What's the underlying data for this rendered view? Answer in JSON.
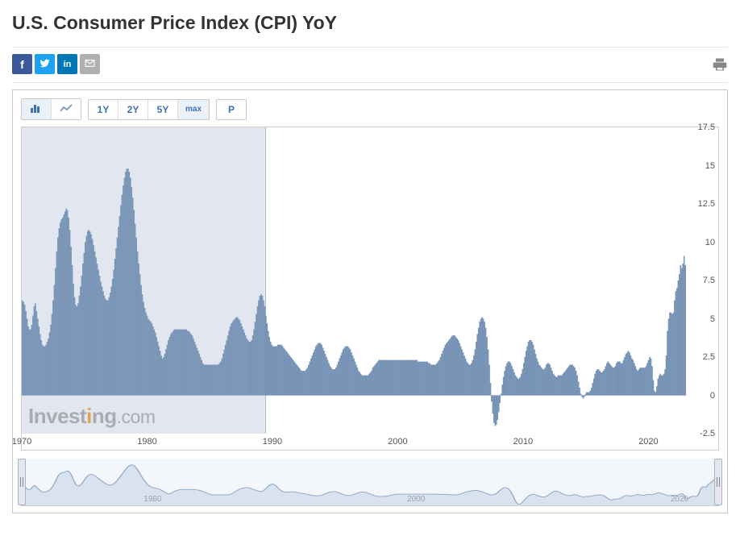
{
  "title": "U.S. Consumer Price Index (CPI) YoY",
  "share": {
    "facebook": "f",
    "twitter": "t",
    "linkedin": "in",
    "email": "✉"
  },
  "toolbar": {
    "chartTypes": {
      "bar": "bar-chart",
      "line": "line-chart",
      "selected": "bar"
    },
    "ranges": [
      "1Y",
      "2Y",
      "5Y",
      "max"
    ],
    "selectedRange": "max",
    "priceBtn": "P"
  },
  "chart": {
    "type": "bar",
    "bar_color": "#7a96b8",
    "bar_border": "#5f7fa6",
    "background": "#ffffff",
    "selection_overlay_fraction_start": 0.0,
    "selection_overlay_fraction_end": 0.35,
    "watermark": {
      "text_a": "Invest",
      "text_b": "i",
      "text_c": "ng",
      "text_d": ".com"
    },
    "y": {
      "min": -2.5,
      "max": 17.5,
      "ticks": [
        -2.5,
        0,
        2.5,
        5,
        7.5,
        10,
        12.5,
        15,
        17.5
      ]
    },
    "x": {
      "start": 1970,
      "end": 2023,
      "tick_step": 10,
      "ticks": [
        1970,
        1980,
        1990,
        2000,
        2010,
        2020
      ]
    },
    "data": [
      6.2,
      6.1,
      5.9,
      5.5,
      5.0,
      4.5,
      4.3,
      4.3,
      4.6,
      5.2,
      5.8,
      6.0,
      5.5,
      5.0,
      4.5,
      4.0,
      3.6,
      3.3,
      3.2,
      3.2,
      3.3,
      3.5,
      3.7,
      4.1,
      4.6,
      5.3,
      6.2,
      7.2,
      8.3,
      9.4,
      10.3,
      10.9,
      11.3,
      11.5,
      11.6,
      11.8,
      12.0,
      12.2,
      12.1,
      11.6,
      10.8,
      9.7,
      8.5,
      7.3,
      6.4,
      5.9,
      5.8,
      6.0,
      6.5,
      7.1,
      7.8,
      8.6,
      9.3,
      10.0,
      10.4,
      10.7,
      10.8,
      10.7,
      10.5,
      10.2,
      9.8,
      9.4,
      9.0,
      8.6,
      8.2,
      7.8,
      7.4,
      7.1,
      6.8,
      6.5,
      6.3,
      6.2,
      6.2,
      6.4,
      6.7,
      7.1,
      7.6,
      8.2,
      8.9,
      9.6,
      10.3,
      11.0,
      11.7,
      12.4,
      13.1,
      13.7,
      14.2,
      14.6,
      14.8,
      14.8,
      14.6,
      14.2,
      13.6,
      12.9,
      12.1,
      11.2,
      10.3,
      9.4,
      8.6,
      7.9,
      7.2,
      6.6,
      6.1,
      5.7,
      5.4,
      5.2,
      5.0,
      4.9,
      4.8,
      4.7,
      4.5,
      4.3,
      4.1,
      3.8,
      3.5,
      3.2,
      2.9,
      2.6,
      2.4,
      2.5,
      2.7,
      3.0,
      3.3,
      3.6,
      3.8,
      4.0,
      4.1,
      4.2,
      4.3,
      4.3,
      4.3,
      4.3,
      4.3,
      4.3,
      4.3,
      4.3,
      4.3,
      4.3,
      4.3,
      4.2,
      4.2,
      4.1,
      4.0,
      3.9,
      3.7,
      3.5,
      3.3,
      3.1,
      2.9,
      2.7,
      2.5,
      2.3,
      2.1,
      2.0,
      2.0,
      2.0,
      2.0,
      2.0,
      2.0,
      2.0,
      2.0,
      2.0,
      2.0,
      2.0,
      2.0,
      2.0,
      2.1,
      2.2,
      2.4,
      2.7,
      3.0,
      3.3,
      3.6,
      3.9,
      4.2,
      4.5,
      4.7,
      4.8,
      4.9,
      5.0,
      5.1,
      5.1,
      5.0,
      4.9,
      4.7,
      4.5,
      4.3,
      4.1,
      3.9,
      3.7,
      3.6,
      3.5,
      3.5,
      3.6,
      3.9,
      4.3,
      4.8,
      5.3,
      5.8,
      6.2,
      6.5,
      6.6,
      6.5,
      6.2,
      5.8,
      5.2,
      4.7,
      4.2,
      3.8,
      3.5,
      3.3,
      3.2,
      3.2,
      3.2,
      3.2,
      3.3,
      3.3,
      3.3,
      3.3,
      3.2,
      3.1,
      3.0,
      2.9,
      2.8,
      2.7,
      2.6,
      2.5,
      2.4,
      2.3,
      2.2,
      2.1,
      2.0,
      1.9,
      1.8,
      1.7,
      1.6,
      1.6,
      1.6,
      1.6,
      1.7,
      1.8,
      2.0,
      2.2,
      2.4,
      2.6,
      2.8,
      3.0,
      3.2,
      3.3,
      3.4,
      3.4,
      3.4,
      3.3,
      3.1,
      2.9,
      2.7,
      2.5,
      2.3,
      2.1,
      1.9,
      1.8,
      1.7,
      1.7,
      1.7,
      1.8,
      2.0,
      2.2,
      2.4,
      2.6,
      2.8,
      3.0,
      3.1,
      3.2,
      3.2,
      3.2,
      3.1,
      3.0,
      2.8,
      2.6,
      2.4,
      2.2,
      2.0,
      1.8,
      1.6,
      1.5,
      1.4,
      1.3,
      1.3,
      1.3,
      1.3,
      1.3,
      1.3,
      1.4,
      1.5,
      1.6,
      1.8,
      1.9,
      2.0,
      2.1,
      2.2,
      2.3,
      2.3,
      2.3,
      2.3,
      2.3,
      2.3,
      2.3,
      2.3,
      2.3,
      2.3,
      2.3,
      2.3,
      2.3,
      2.3,
      2.3,
      2.3,
      2.3,
      2.3,
      2.3,
      2.3,
      2.3,
      2.3,
      2.3,
      2.3,
      2.3,
      2.3,
      2.3,
      2.3,
      2.3,
      2.3,
      2.3,
      2.3,
      2.3,
      2.2,
      2.2,
      2.2,
      2.2,
      2.2,
      2.2,
      2.2,
      2.2,
      2.2,
      2.1,
      2.1,
      2.0,
      2.0,
      2.0,
      2.0,
      2.0,
      2.1,
      2.2,
      2.3,
      2.5,
      2.7,
      2.9,
      3.1,
      3.3,
      3.4,
      3.5,
      3.6,
      3.7,
      3.8,
      3.9,
      3.9,
      3.9,
      3.8,
      3.7,
      3.6,
      3.4,
      3.2,
      3.0,
      2.8,
      2.6,
      2.4,
      2.2,
      2.1,
      2.0,
      2.0,
      2.1,
      2.3,
      2.6,
      3.0,
      3.5,
      4.0,
      4.4,
      4.8,
      5.0,
      5.1,
      5.0,
      4.8,
      4.4,
      3.8,
      3.0,
      2.0,
      0.8,
      -0.4,
      -1.2,
      -1.8,
      -2.0,
      -1.9,
      -1.6,
      -1.1,
      -0.5,
      0.1,
      0.7,
      1.2,
      1.6,
      1.9,
      2.1,
      2.2,
      2.2,
      2.1,
      1.9,
      1.7,
      1.5,
      1.3,
      1.2,
      1.1,
      1.1,
      1.2,
      1.4,
      1.7,
      2.1,
      2.5,
      2.9,
      3.2,
      3.5,
      3.6,
      3.6,
      3.5,
      3.3,
      3.0,
      2.7,
      2.4,
      2.2,
      2.0,
      1.9,
      1.8,
      1.7,
      1.7,
      1.8,
      2.0,
      2.1,
      2.1,
      2.0,
      1.8,
      1.6,
      1.4,
      1.3,
      1.2,
      1.2,
      1.3,
      1.3,
      1.3,
      1.3,
      1.4,
      1.5,
      1.6,
      1.7,
      1.8,
      1.9,
      2.0,
      2.0,
      2.0,
      1.9,
      1.8,
      1.6,
      1.3,
      0.9,
      0.5,
      0.1,
      -0.1,
      -0.2,
      -0.1,
      0.1,
      0.2,
      0.2,
      0.2,
      0.3,
      0.5,
      0.8,
      1.1,
      1.4,
      1.6,
      1.7,
      1.7,
      1.6,
      1.5,
      1.5,
      1.6,
      1.7,
      1.9,
      2.1,
      2.2,
      2.1,
      2.0,
      1.9,
      1.8,
      1.8,
      1.9,
      2.1,
      2.2,
      2.2,
      2.2,
      2.1,
      2.1,
      2.3,
      2.5,
      2.7,
      2.8,
      2.9,
      2.8,
      2.6,
      2.4,
      2.3,
      2.1,
      1.9,
      1.7,
      1.6,
      1.7,
      1.8,
      1.8,
      1.8,
      1.8,
      1.8,
      1.9,
      2.1,
      2.3,
      2.5,
      2.4,
      1.9,
      1.0,
      0.3,
      0.2,
      0.6,
      1.1,
      1.3,
      1.4,
      1.3,
      1.3,
      1.4,
      1.7,
      2.6,
      4.2,
      5.0,
      5.4,
      5.4,
      5.3,
      5.4,
      6.2,
      6.8,
      7.0,
      7.5,
      7.9,
      8.5,
      8.3,
      8.6,
      9.1,
      8.5
    ]
  },
  "navigator": {
    "line_color": "#8aa3c4",
    "fill_color": "#d9e3ef",
    "background": "#f3f6fa",
    "ticks": [
      1980,
      2000,
      2020
    ]
  }
}
